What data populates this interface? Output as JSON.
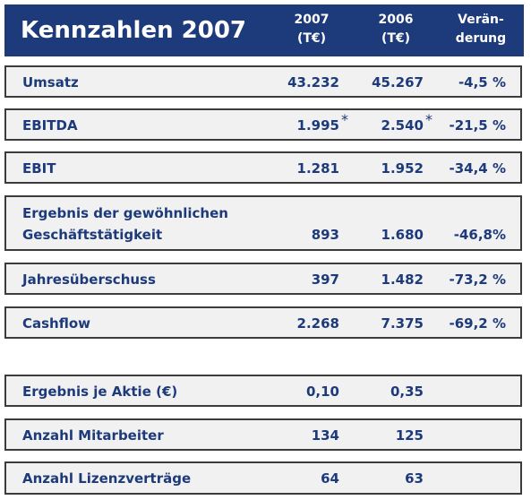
{
  "header": {
    "title": "Kennzahlen 2007",
    "col_2007_line1": "2007",
    "col_2007_line2": "(T€)",
    "col_2006_line1": "2006",
    "col_2006_line2": "(T€)",
    "col_change_line1": "Verän-",
    "col_change_line2": "derung"
  },
  "rows": [
    {
      "label": "Umsatz",
      "v2007": "43.232",
      "v2006": "45.267",
      "change": "-4,5 %"
    },
    {
      "label": "EBITDA",
      "v2007": "1.995",
      "v2006": "2.540",
      "change": "-21,5 %",
      "footnote_mark": "*"
    },
    {
      "label": "EBIT",
      "v2007": "1.281",
      "v2006": "1.952",
      "change": "-34,4 %"
    },
    {
      "label_line1": "Ergebnis der gewöhnlichen",
      "label_line2": "Geschäftstätigkeit",
      "v2007": "893",
      "v2006": "1.680",
      "change": "-46,8%"
    },
    {
      "label": "Jahresüberschuss",
      "v2007": "397",
      "v2006": "1.482",
      "change": "-73,2 %"
    },
    {
      "label": "Cashflow",
      "v2007": "2.268",
      "v2006": "7.375",
      "change": "-69,2 %"
    }
  ],
  "extra_rows": [
    {
      "label": "Ergebnis je Aktie (€)",
      "v2007": "0,10",
      "v2006": "0,35"
    },
    {
      "label": "Anzahl Mitarbeiter",
      "v2007": "134",
      "v2006": "125"
    },
    {
      "label": "Anzahl Lizenzverträge",
      "v2007": "64",
      "v2006": "63"
    }
  ],
  "colors": {
    "header_bg": "#1d3a7a",
    "text": "#1d3a7a",
    "row_bg": "#f1f1f1"
  }
}
